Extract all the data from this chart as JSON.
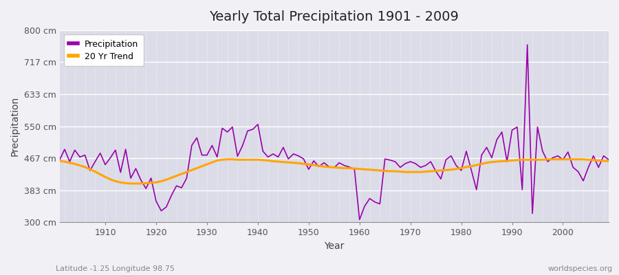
{
  "title": "Yearly Total Precipitation 1901 - 2009",
  "xlabel": "Year",
  "ylabel": "Precipitation",
  "subtitle": "Latitude -1.25 Longitude 98.75",
  "watermark": "worldspecies.org",
  "legend_labels": [
    "Precipitation",
    "20 Yr Trend"
  ],
  "precip_color": "#9900aa",
  "trend_color": "#FFA500",
  "fig_bg_color": "#f0f0f5",
  "plot_bg_color": "#dcdce8",
  "ylim": [
    300,
    800
  ],
  "yticks": [
    300,
    383,
    467,
    550,
    633,
    717,
    800
  ],
  "ytick_labels": [
    "300 cm",
    "383 cm",
    "467 cm",
    "550 cm",
    "633 cm",
    "717 cm",
    "800 cm"
  ],
  "xlim": [
    1901,
    2009
  ],
  "xticks": [
    1910,
    1920,
    1930,
    1940,
    1950,
    1960,
    1970,
    1980,
    1990,
    2000
  ],
  "years": [
    1901,
    1902,
    1903,
    1904,
    1905,
    1906,
    1907,
    1908,
    1909,
    1910,
    1911,
    1912,
    1913,
    1914,
    1915,
    1916,
    1917,
    1918,
    1919,
    1920,
    1921,
    1922,
    1923,
    1924,
    1925,
    1926,
    1927,
    1928,
    1929,
    1930,
    1931,
    1932,
    1933,
    1934,
    1935,
    1936,
    1937,
    1938,
    1939,
    1940,
    1941,
    1942,
    1943,
    1944,
    1945,
    1946,
    1947,
    1948,
    1949,
    1950,
    1951,
    1952,
    1953,
    1954,
    1955,
    1956,
    1957,
    1958,
    1959,
    1960,
    1961,
    1962,
    1963,
    1964,
    1965,
    1966,
    1967,
    1968,
    1969,
    1970,
    1971,
    1972,
    1973,
    1974,
    1975,
    1976,
    1977,
    1978,
    1979,
    1980,
    1981,
    1982,
    1983,
    1984,
    1985,
    1986,
    1987,
    1988,
    1989,
    1990,
    1991,
    1992,
    1993,
    1994,
    1995,
    1996,
    1997,
    1998,
    1999,
    2000,
    2001,
    2002,
    2003,
    2004,
    2005,
    2006,
    2007,
    2008,
    2009
  ],
  "precipitation": [
    462,
    490,
    458,
    488,
    470,
    475,
    435,
    458,
    480,
    450,
    468,
    488,
    430,
    490,
    415,
    440,
    410,
    388,
    415,
    355,
    330,
    340,
    370,
    395,
    390,
    415,
    500,
    520,
    475,
    475,
    500,
    470,
    545,
    535,
    548,
    472,
    500,
    538,
    542,
    555,
    485,
    470,
    478,
    470,
    495,
    465,
    478,
    473,
    465,
    438,
    460,
    445,
    455,
    445,
    442,
    455,
    448,
    444,
    438,
    307,
    342,
    362,
    353,
    348,
    465,
    462,
    458,
    443,
    453,
    458,
    453,
    443,
    448,
    458,
    433,
    413,
    463,
    473,
    448,
    435,
    485,
    435,
    385,
    475,
    495,
    468,
    515,
    535,
    458,
    540,
    548,
    385,
    762,
    323,
    548,
    485,
    458,
    468,
    473,
    463,
    483,
    443,
    432,
    408,
    443,
    473,
    443,
    473,
    463
  ],
  "trend": [
    460,
    458,
    455,
    452,
    448,
    444,
    438,
    432,
    425,
    418,
    412,
    407,
    404,
    402,
    401,
    401,
    401,
    402,
    403,
    404,
    407,
    411,
    416,
    421,
    426,
    431,
    436,
    441,
    446,
    451,
    456,
    461,
    463,
    464,
    464,
    463,
    463,
    463,
    463,
    463,
    462,
    461,
    459,
    458,
    457,
    456,
    455,
    454,
    452,
    451,
    449,
    447,
    445,
    444,
    443,
    442,
    441,
    441,
    440,
    439,
    438,
    437,
    436,
    435,
    434,
    433,
    433,
    432,
    431,
    431,
    431,
    431,
    432,
    433,
    434,
    435,
    436,
    437,
    439,
    441,
    444,
    446,
    449,
    452,
    455,
    457,
    458,
    459,
    460,
    461,
    462,
    463,
    463,
    463,
    463,
    463,
    464,
    464,
    464,
    464,
    464,
    464,
    464,
    464,
    463,
    462,
    461,
    460,
    459
  ]
}
